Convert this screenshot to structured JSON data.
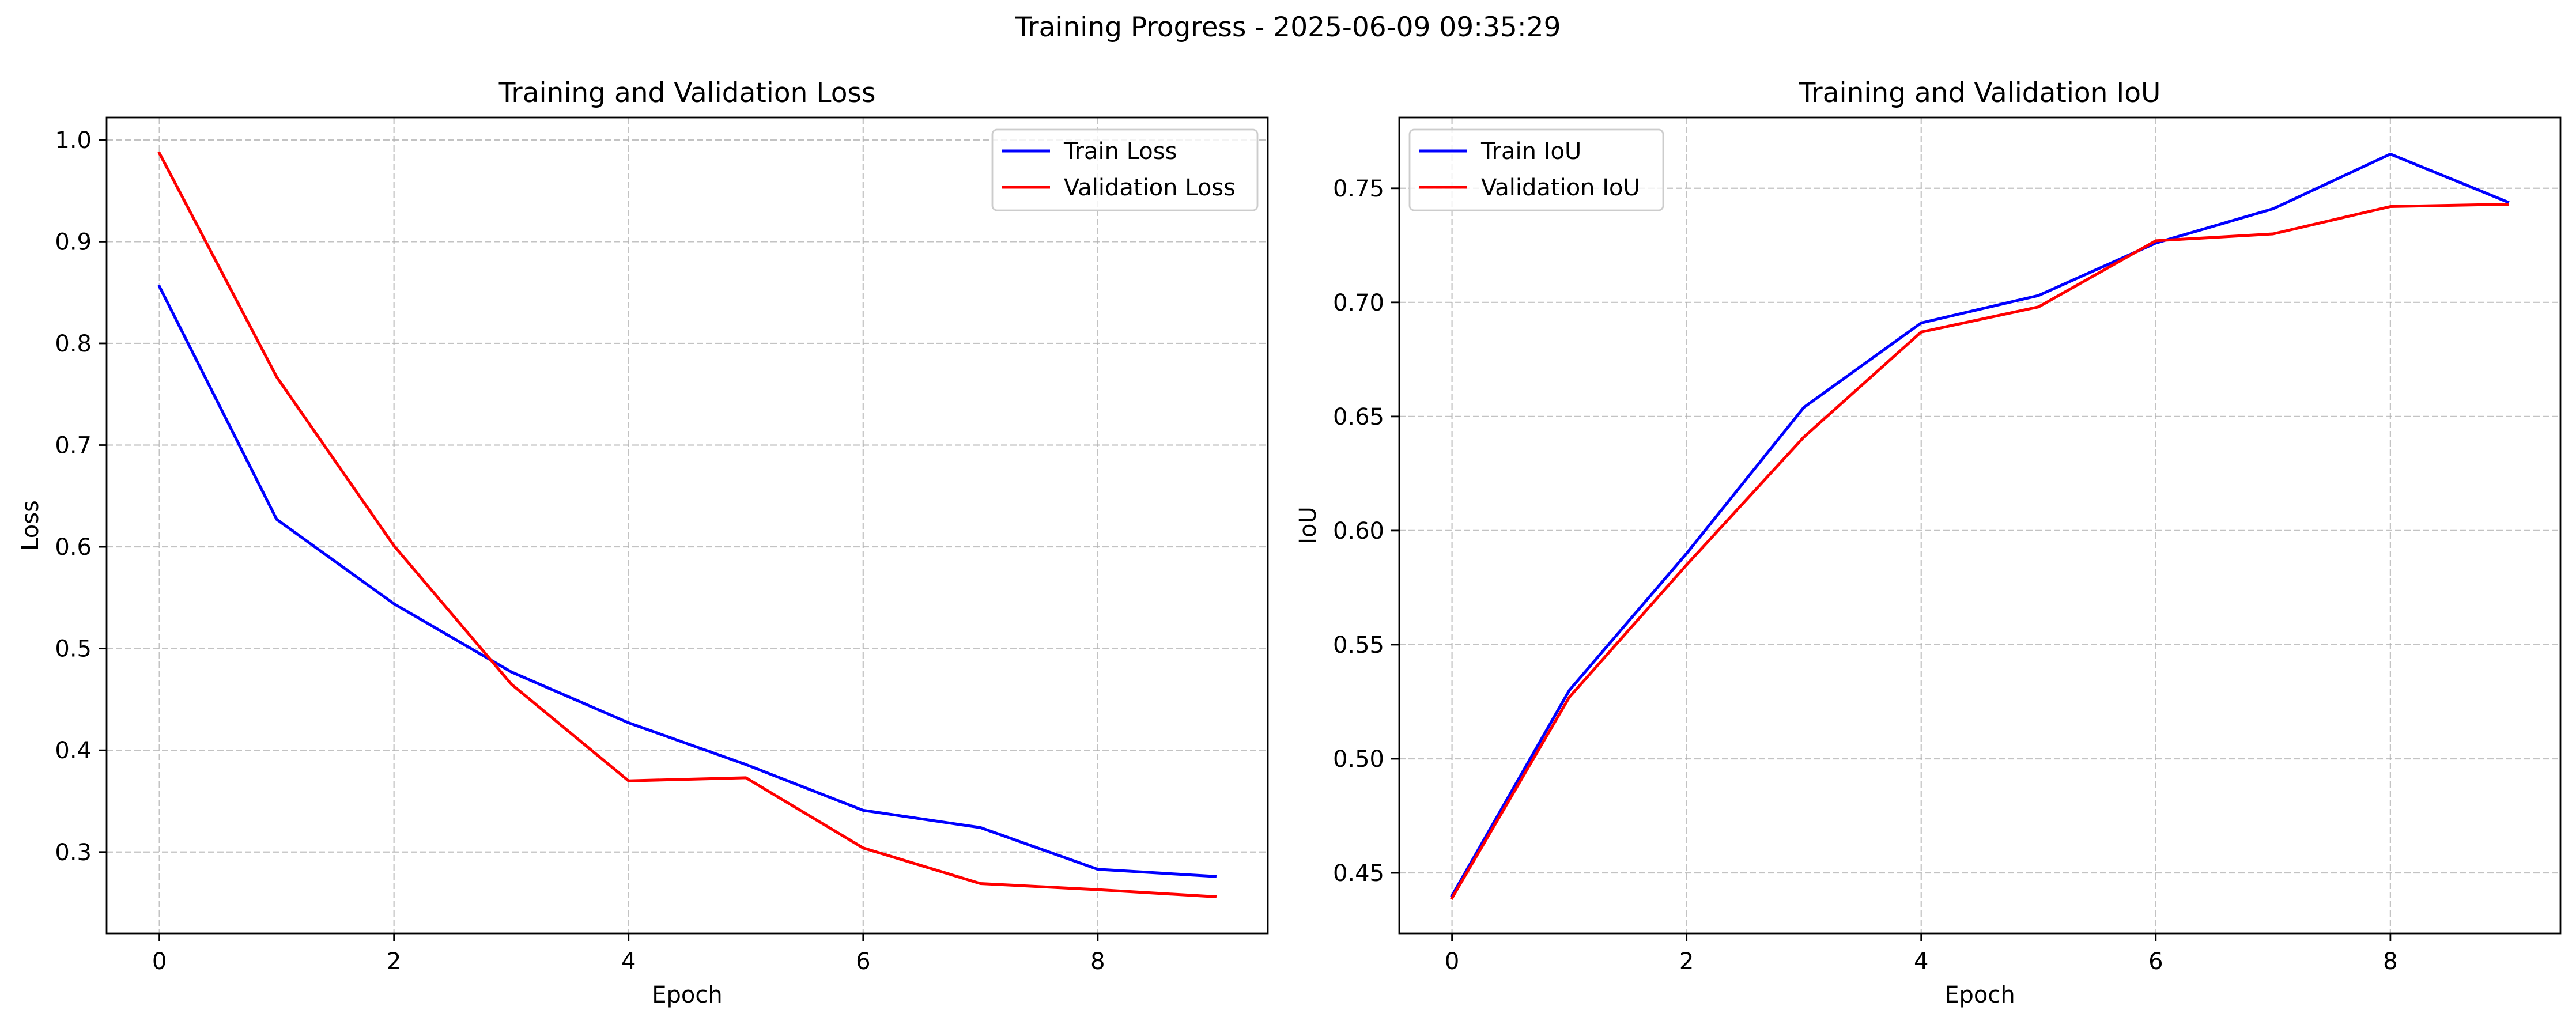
{
  "figure": {
    "suptitle": "Training Progress - 2025-06-09 09:35:29"
  },
  "chart_data": [
    {
      "type": "line",
      "title": "Training and Validation Loss",
      "xlabel": "Epoch",
      "ylabel": "Loss",
      "x": [
        0,
        1,
        2,
        3,
        4,
        5,
        6,
        7,
        8,
        9
      ],
      "xlim": [
        -0.45,
        9.45
      ],
      "ylim": [
        0.22,
        1.022
      ],
      "xticks": [
        0,
        2,
        4,
        6,
        8
      ],
      "yticks": [
        0.3,
        0.4,
        0.5,
        0.6,
        0.7,
        0.8,
        0.9,
        1.0
      ],
      "ytick_labels": [
        "0.3",
        "0.4",
        "0.5",
        "0.6",
        "0.7",
        "0.8",
        "0.9",
        "1.0"
      ],
      "grid": true,
      "legend_position": "top-right",
      "series": [
        {
          "name": "Train Loss",
          "color": "#0000ff",
          "values": [
            0.856,
            0.627,
            0.544,
            0.477,
            0.427,
            0.386,
            0.341,
            0.324,
            0.283,
            0.276
          ]
        },
        {
          "name": "Validation Loss",
          "color": "#ff0000",
          "values": [
            0.987,
            0.767,
            0.601,
            0.465,
            0.37,
            0.373,
            0.304,
            0.269,
            0.263,
            0.256
          ]
        }
      ]
    },
    {
      "type": "line",
      "title": "Training and Validation IoU",
      "xlabel": "Epoch",
      "ylabel": "IoU",
      "x": [
        0,
        1,
        2,
        3,
        4,
        5,
        6,
        7,
        8,
        9
      ],
      "xlim": [
        -0.45,
        9.45
      ],
      "ylim": [
        0.4235,
        0.781
      ],
      "xticks": [
        0,
        2,
        4,
        6,
        8
      ],
      "yticks": [
        0.45,
        0.5,
        0.55,
        0.6,
        0.65,
        0.7,
        0.75
      ],
      "ytick_labels": [
        "0.45",
        "0.50",
        "0.55",
        "0.60",
        "0.65",
        "0.70",
        "0.75"
      ],
      "grid": true,
      "legend_position": "top-left",
      "series": [
        {
          "name": "Train IoU",
          "color": "#0000ff",
          "values": [
            0.44,
            0.53,
            0.59,
            0.654,
            0.691,
            0.703,
            0.726,
            0.741,
            0.765,
            0.744
          ]
        },
        {
          "name": "Validation IoU",
          "color": "#ff0000",
          "values": [
            0.439,
            0.527,
            0.585,
            0.641,
            0.687,
            0.698,
            0.727,
            0.73,
            0.742,
            0.743
          ]
        }
      ]
    }
  ]
}
